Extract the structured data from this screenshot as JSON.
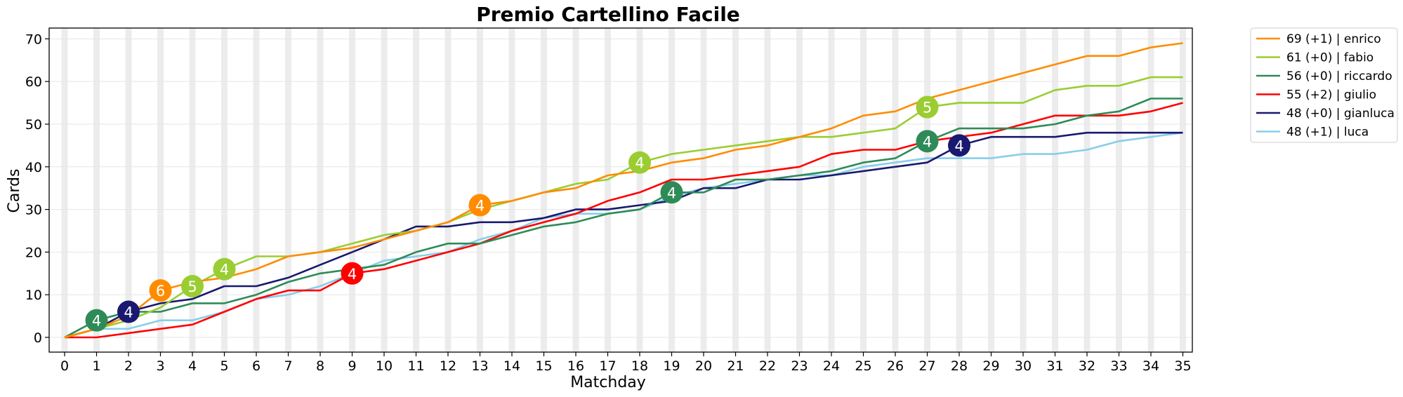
{
  "chart_data": {
    "type": "line",
    "title": "Premio Cartellino Facile",
    "xlabel": "Matchday",
    "ylabel": "Cards",
    "xlim": [
      0,
      35
    ],
    "ylim": [
      -3,
      72.5
    ],
    "xticks": [
      0,
      1,
      2,
      3,
      4,
      5,
      6,
      7,
      8,
      9,
      10,
      11,
      12,
      13,
      14,
      15,
      16,
      17,
      18,
      19,
      20,
      21,
      22,
      23,
      24,
      25,
      26,
      27,
      28,
      29,
      30,
      31,
      32,
      33,
      34,
      35
    ],
    "yticks": [
      0,
      10,
      20,
      30,
      40,
      50,
      60,
      70
    ],
    "grid": true,
    "legend_position": "outside-top-right",
    "series": [
      {
        "name": "enrico",
        "legend": "69 (+1) | enrico",
        "color": "#ff8c00",
        "values": [
          0,
          2,
          5,
          11,
          13,
          14,
          16,
          19,
          20,
          21,
          23,
          25,
          27,
          31,
          32,
          34,
          35,
          38,
          39,
          41,
          42,
          44,
          45,
          47,
          49,
          52,
          53,
          56,
          58,
          60,
          62,
          64,
          66,
          66,
          68,
          69
        ],
        "markers": [
          {
            "x": 3,
            "y": 11,
            "label": "6"
          },
          {
            "x": 13,
            "y": 31,
            "label": "4"
          }
        ]
      },
      {
        "name": "fabio",
        "legend": "61 (+0) | fabio",
        "color": "#9acd32",
        "values": [
          0,
          2,
          4,
          7,
          12,
          16,
          19,
          19,
          20,
          22,
          24,
          25,
          27,
          30,
          32,
          34,
          36,
          37,
          41,
          43,
          44,
          45,
          46,
          47,
          47,
          48,
          49,
          54,
          55,
          55,
          55,
          58,
          59,
          59,
          61,
          61
        ],
        "markers": [
          {
            "x": 4,
            "y": 12,
            "label": "5"
          },
          {
            "x": 5,
            "y": 16,
            "label": "4"
          },
          {
            "x": 18,
            "y": 41,
            "label": "4"
          },
          {
            "x": 27,
            "y": 54,
            "label": "5"
          }
        ]
      },
      {
        "name": "riccardo",
        "legend": "56 (+0) | riccardo",
        "color": "#2e8b57",
        "values": [
          0,
          4,
          6,
          6,
          8,
          8,
          10,
          13,
          15,
          16,
          17,
          20,
          22,
          22,
          24,
          26,
          27,
          29,
          30,
          34,
          34,
          37,
          37,
          38,
          39,
          41,
          42,
          46,
          49,
          49,
          49,
          50,
          52,
          53,
          56,
          56
        ],
        "markers": [
          {
            "x": 1,
            "y": 4,
            "label": "4"
          },
          {
            "x": 19,
            "y": 34,
            "label": "4"
          },
          {
            "x": 27,
            "y": 46,
            "label": "4"
          }
        ]
      },
      {
        "name": "giulio",
        "legend": "55 (+2) | giulio",
        "color": "#ff0000",
        "values": [
          0,
          0,
          1,
          2,
          3,
          6,
          9,
          11,
          11,
          15,
          16,
          18,
          20,
          22,
          25,
          27,
          29,
          32,
          34,
          37,
          37,
          38,
          39,
          40,
          43,
          44,
          44,
          46,
          47,
          48,
          50,
          52,
          52,
          52,
          53,
          55
        ],
        "markers": [
          {
            "x": 9,
            "y": 15,
            "label": "4"
          }
        ]
      },
      {
        "name": "gianluca",
        "legend": "48 (+0) | gianluca",
        "color": "#191970",
        "values": [
          0,
          2,
          6,
          8,
          9,
          12,
          12,
          14,
          17,
          20,
          23,
          26,
          26,
          27,
          27,
          28,
          30,
          30,
          31,
          32,
          35,
          35,
          37,
          37,
          38,
          39,
          40,
          41,
          45,
          47,
          47,
          47,
          48,
          48,
          48,
          48
        ],
        "markers": [
          {
            "x": 2,
            "y": 6,
            "label": "4"
          },
          {
            "x": 28,
            "y": 45,
            "label": "4"
          }
        ]
      },
      {
        "name": "luca",
        "legend": "48 (+1) | luca",
        "color": "#87ceeb",
        "values": [
          0,
          2,
          2,
          4,
          4,
          6,
          9,
          10,
          12,
          15,
          18,
          19,
          20,
          23,
          25,
          28,
          29,
          29,
          30,
          33,
          35,
          36,
          37,
          38,
          38,
          40,
          41,
          42,
          42,
          42,
          43,
          43,
          44,
          46,
          47,
          48
        ],
        "markers": []
      }
    ]
  }
}
